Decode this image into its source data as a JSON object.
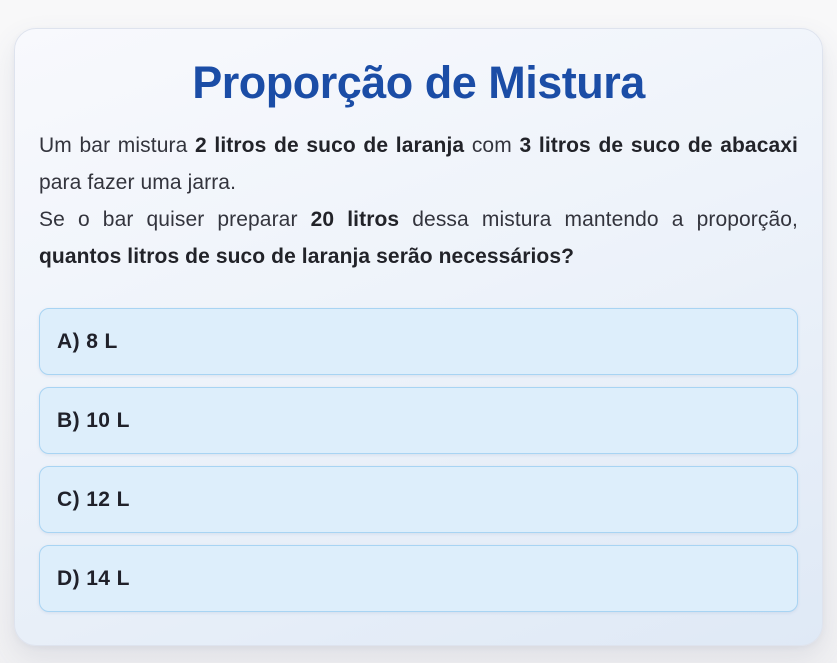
{
  "colors": {
    "page_bg": "#f7f7f8",
    "card_bg_top": "#f8f9fd",
    "card_bg_bottom": "#dfe9f6",
    "title": "#1b4da6",
    "question_text": "#33343d",
    "option_bg": "#ddeefb",
    "option_border": "#a8d4f3",
    "option_text": "#20212a"
  },
  "title": "Proporção de Mistura",
  "question": {
    "p1": [
      {
        "text": "Um bar mistura ",
        "bold": false
      },
      {
        "text": "2 litros de suco de laranja",
        "bold": true
      },
      {
        "text": " com ",
        "bold": false
      },
      {
        "text": "3 litros de suco de abacaxi",
        "bold": true
      },
      {
        "text": " para fazer uma jarra.",
        "bold": false
      }
    ],
    "p2": [
      {
        "text": "Se o bar quiser preparar ",
        "bold": false
      },
      {
        "text": "20 litros",
        "bold": true
      },
      {
        "text": " dessa mistura mantendo a proporção, ",
        "bold": false
      },
      {
        "text": "quantos litros de suco de laranja serão necessários?",
        "bold": true
      }
    ]
  },
  "options": [
    {
      "label": "A) 8 L"
    },
    {
      "label": "B) 10 L"
    },
    {
      "label": "C) 12 L"
    },
    {
      "label": "D) 14 L"
    }
  ]
}
